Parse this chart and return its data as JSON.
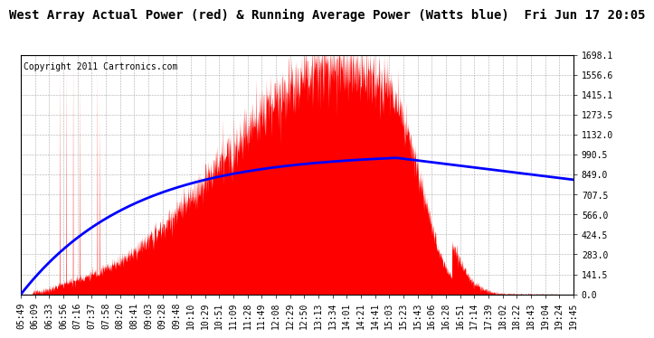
{
  "title": "West Array Actual Power (red) & Running Average Power (Watts blue)  Fri Jun 17 20:05",
  "copyright": "Copyright 2011 Cartronics.com",
  "ylim": [
    0.0,
    1698.1
  ],
  "yticks": [
    0.0,
    141.5,
    283.0,
    424.5,
    566.0,
    707.5,
    849.0,
    990.5,
    1132.0,
    1273.5,
    1415.1,
    1556.6,
    1698.1
  ],
  "xtick_labels": [
    "05:49",
    "06:09",
    "06:33",
    "06:56",
    "07:16",
    "07:37",
    "07:58",
    "08:20",
    "08:41",
    "09:03",
    "09:28",
    "09:48",
    "10:10",
    "10:29",
    "10:51",
    "11:09",
    "11:28",
    "11:49",
    "12:08",
    "12:29",
    "12:50",
    "13:13",
    "13:34",
    "14:01",
    "14:21",
    "14:41",
    "15:03",
    "15:23",
    "15:43",
    "16:06",
    "16:28",
    "16:51",
    "17:14",
    "17:39",
    "18:02",
    "18:22",
    "18:43",
    "19:04",
    "19:24",
    "19:45"
  ],
  "bg_color": "#ffffff",
  "plot_bg_color": "#ffffff",
  "grid_color": "#aaaaaa",
  "bar_color": "#ff0000",
  "line_color": "#0000ff",
  "title_fontsize": 10,
  "copyright_fontsize": 7,
  "tick_fontsize": 7,
  "n_labels": 40
}
